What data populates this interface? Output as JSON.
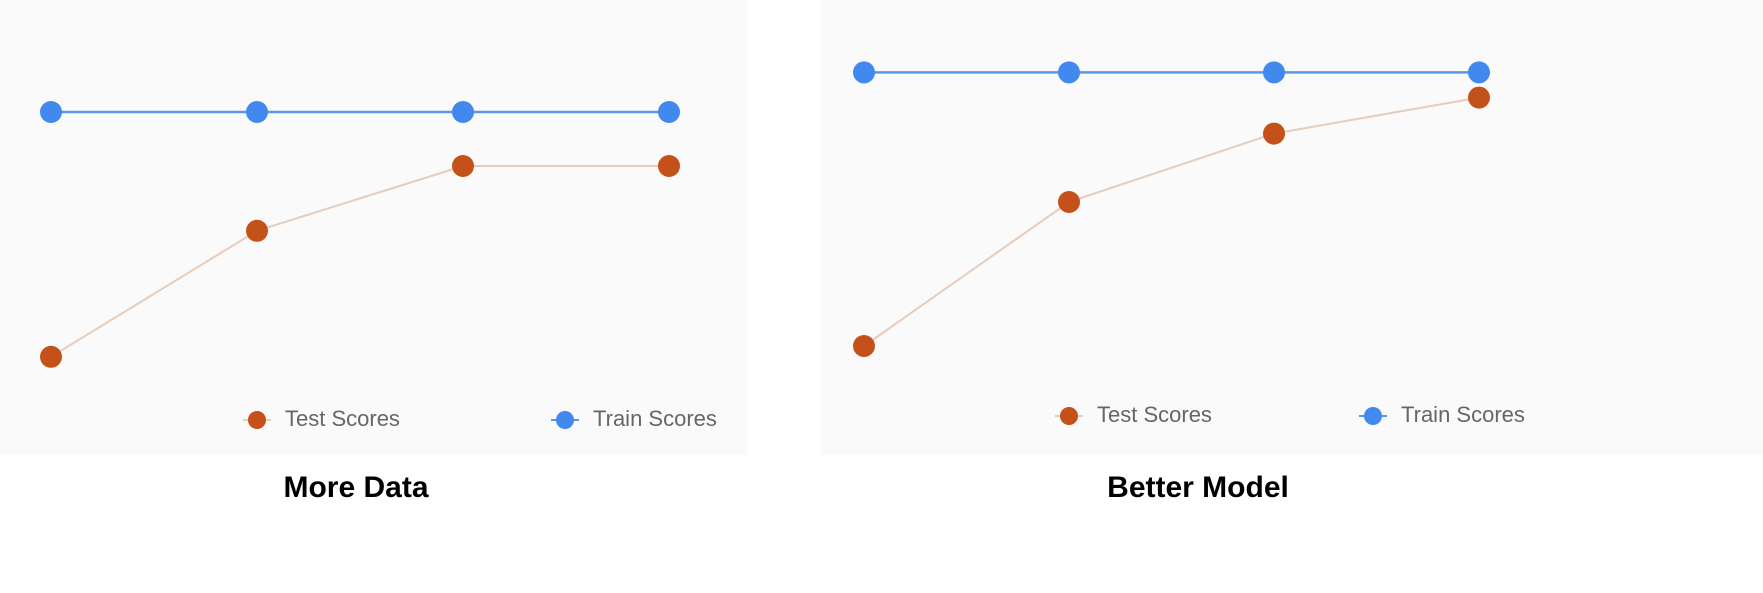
{
  "chart_data": [
    {
      "type": "line",
      "title": "More Data",
      "categories": [
        null,
        null,
        null,
        null
      ],
      "ylim": [
        0,
        100
      ],
      "legend": "bottom",
      "series": [
        {
          "name": "Test Scores",
          "color": "#c4501a",
          "line_color": "#e6ccba",
          "values": [
            12,
            47,
            65,
            65
          ]
        },
        {
          "name": "Train Scores",
          "color": "#4189ef",
          "line_color": "#5b95e8",
          "values": [
            80,
            80,
            80,
            80
          ]
        }
      ]
    },
    {
      "type": "line",
      "title": "Better Model",
      "categories": [
        null,
        null,
        null,
        null
      ],
      "ylim": [
        0,
        100
      ],
      "legend": "bottom",
      "series": [
        {
          "name": "Test Scores",
          "color": "#c4501a",
          "line_color": "#e6ccba",
          "values": [
            15,
            55,
            74,
            84
          ]
        },
        {
          "name": "Train Scores",
          "color": "#4189ef",
          "line_color": "#5b95e8",
          "values": [
            91,
            91,
            91,
            91
          ]
        }
      ]
    }
  ]
}
